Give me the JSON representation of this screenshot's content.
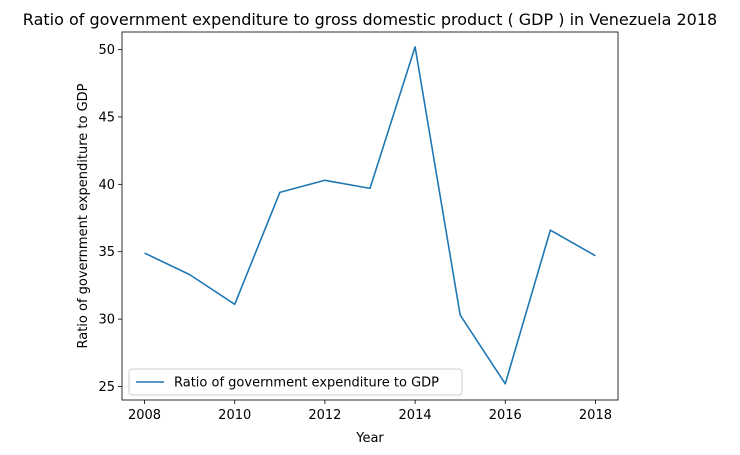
{
  "chart_data": {
    "type": "line",
    "title": "Ratio of government expenditure to gross domestic product ( GDP ) in Venezuela 2018",
    "xlabel": "Year",
    "ylabel": "Ratio of government expenditure to GDP",
    "x": [
      2008,
      2009,
      2010,
      2011,
      2012,
      2013,
      2014,
      2015,
      2016,
      2017,
      2018
    ],
    "x_ticks": [
      "2008",
      "2010",
      "2012",
      "2014",
      "2016",
      "2018"
    ],
    "y_ticks": [
      "25",
      "30",
      "35",
      "40",
      "45",
      "50"
    ],
    "xlim": [
      2007.5,
      2018.5
    ],
    "ylim": [
      24.0,
      51.3
    ],
    "grid": false,
    "legend_position": "lower-left",
    "series": [
      {
        "name": "Ratio of government expenditure to GDP",
        "color": "#1f77b4",
        "values": [
          34.9,
          33.3,
          31.1,
          39.4,
          40.3,
          39.7,
          50.2,
          30.3,
          25.2,
          36.6,
          34.7
        ]
      }
    ]
  }
}
